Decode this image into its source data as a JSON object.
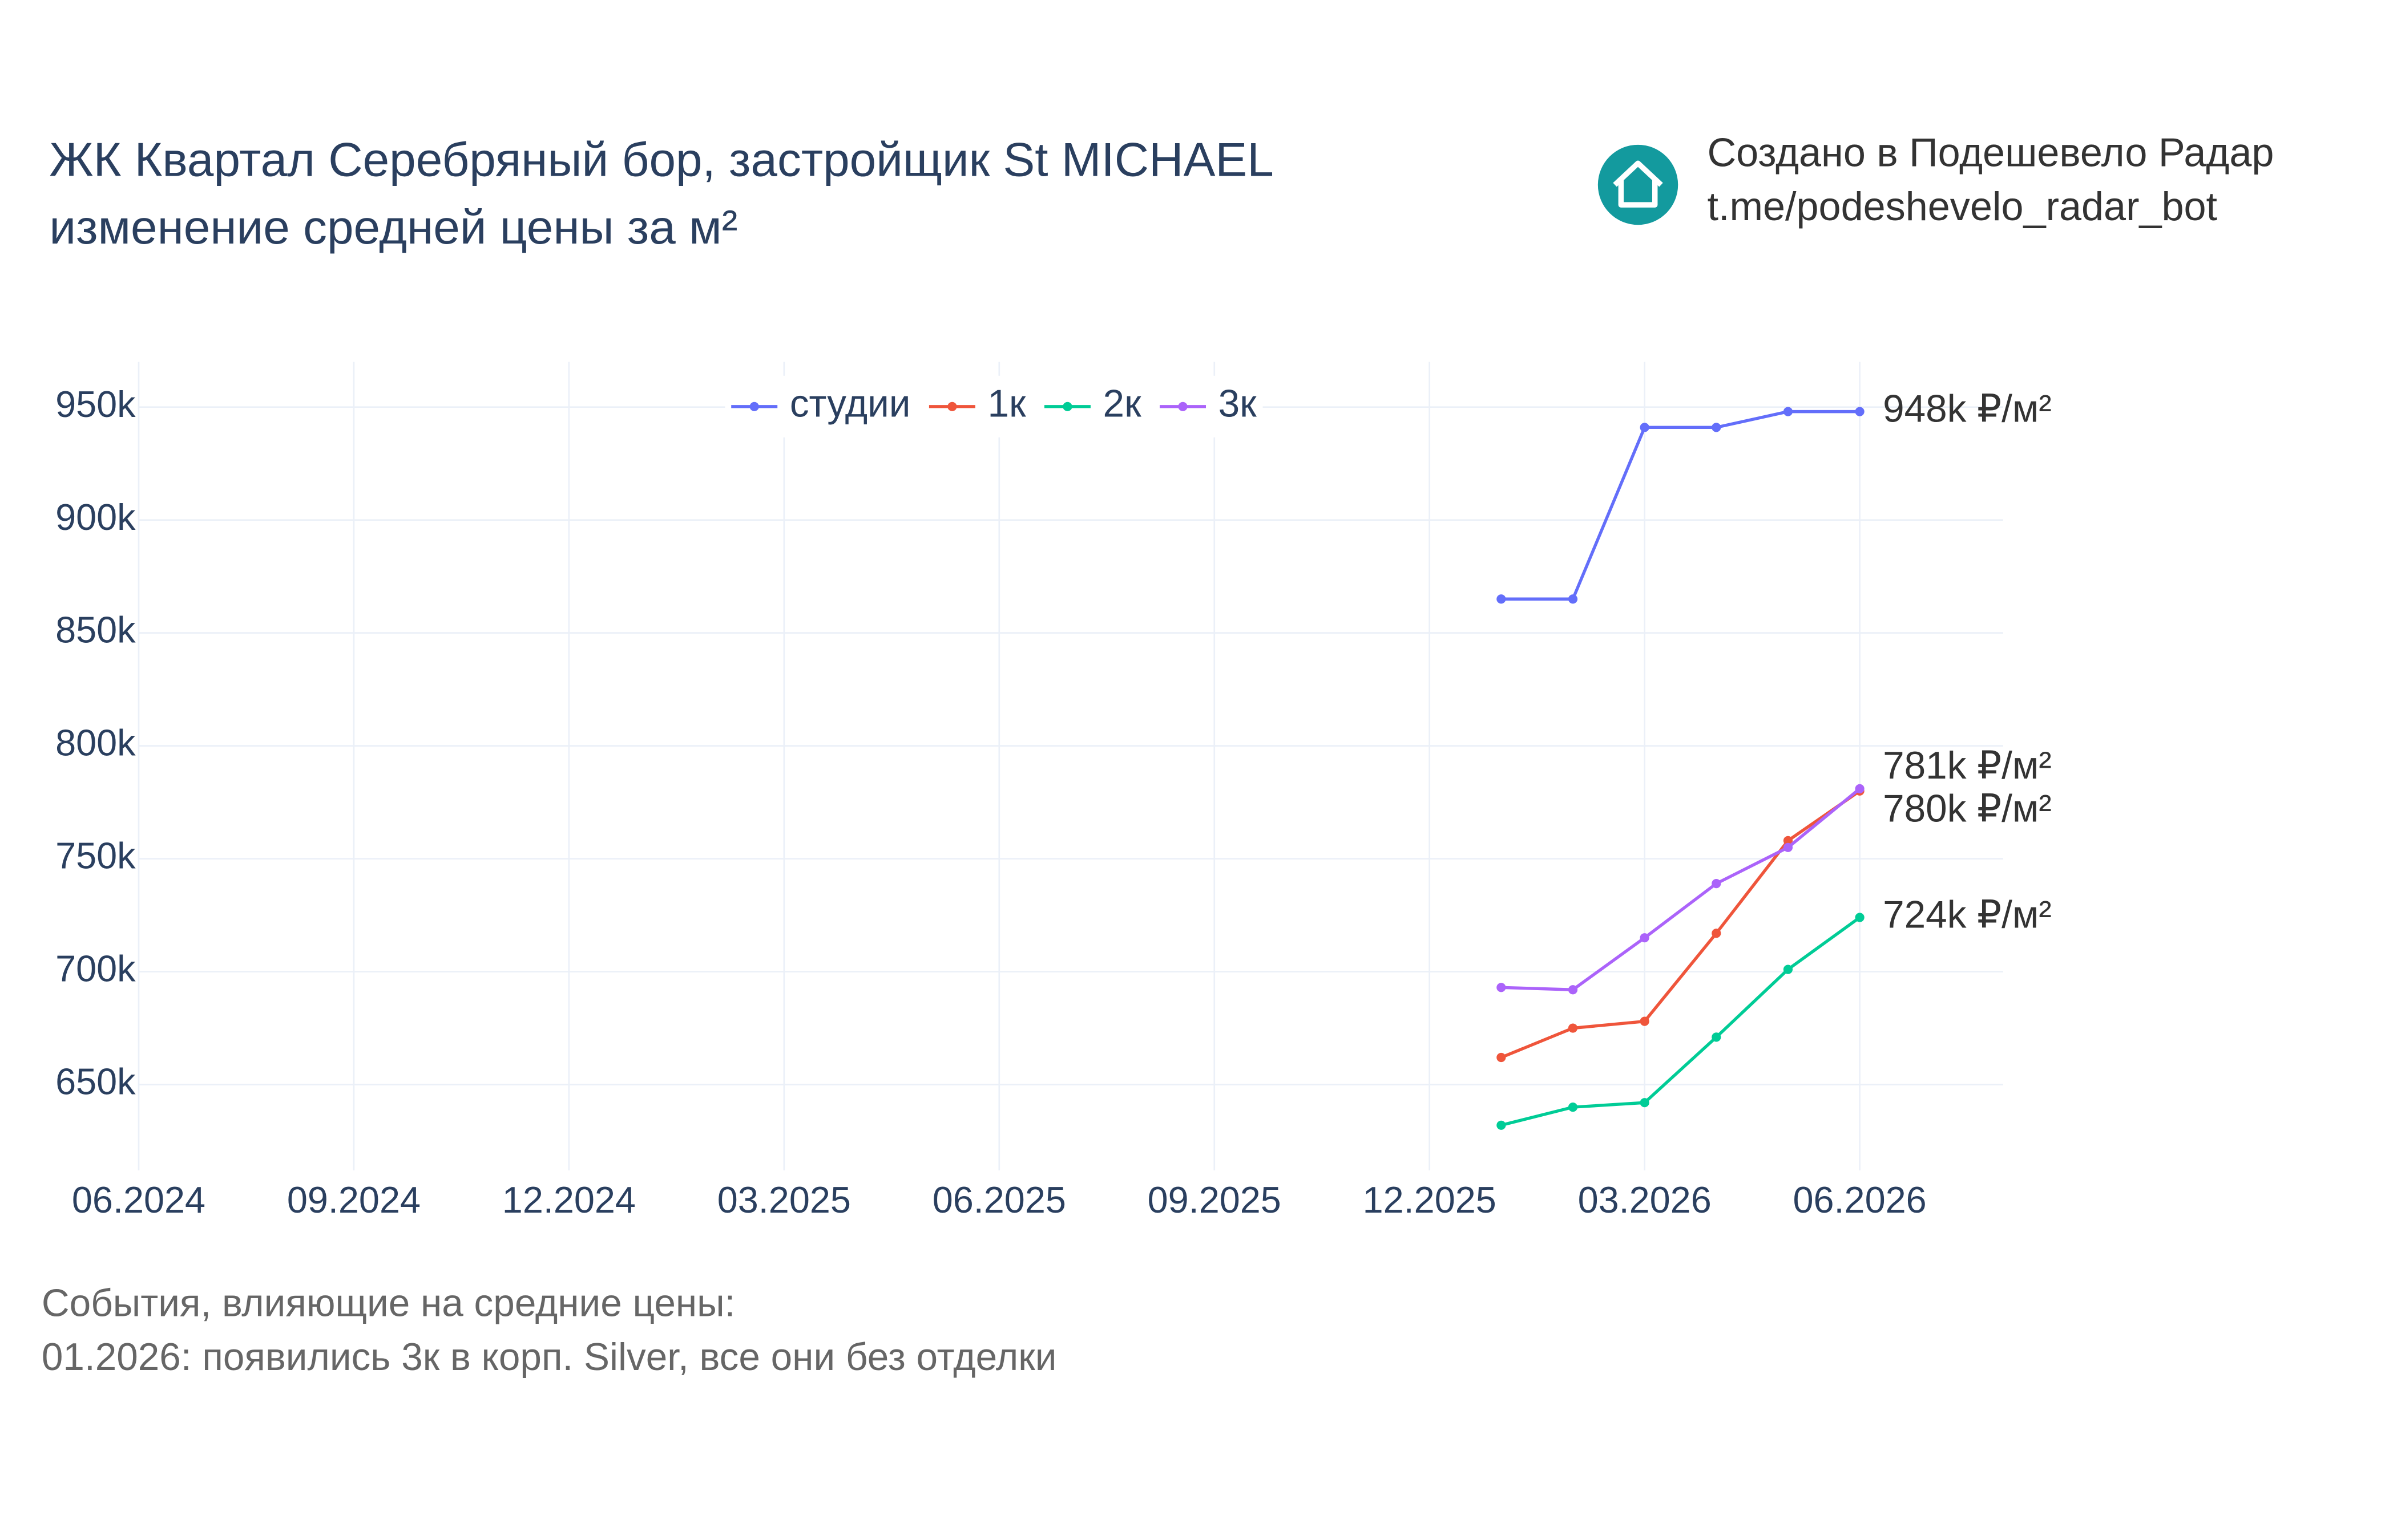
{
  "chart_data": {
    "type": "line",
    "title": "ЖК Квартал Серебряный бор, застройщик St MICHAEL",
    "subtitle": "изменение средней цены за м²",
    "credit": [
      "Создано в Подешевело Радар",
      "t.me/podeshevelo_radar_bot"
    ],
    "notes": [
      "События, влияющие на средние цены:",
      "01.2026: появились 3к в корп. Silver, все они без отделки"
    ],
    "x": [
      "01.2026",
      "02.2026",
      "03.2026",
      "04.2026",
      "05.2026",
      "06.2026"
    ],
    "series": [
      {
        "name": "студии",
        "color": "#636efa",
        "values": [
          865000,
          865000,
          941000,
          941000,
          948000,
          948000
        ],
        "value_labels": [
          null,
          null,
          null,
          null,
          null,
          "948k ₽/м²"
        ]
      },
      {
        "name": "1к",
        "color": "#ef553b",
        "values": [
          662000,
          675000,
          678000,
          717000,
          758000,
          780000
        ],
        "value_labels": [
          null,
          null,
          null,
          null,
          null,
          "780k ₽/м²"
        ]
      },
      {
        "name": "2к",
        "color": "#00cc96",
        "values": [
          632000,
          640000,
          642000,
          671000,
          701000,
          724000
        ],
        "value_labels": [
          null,
          null,
          null,
          null,
          null,
          "724k ₽/м²"
        ]
      },
      {
        "name": "3к",
        "color": "#ab63fa",
        "values": [
          693000,
          692000,
          715000,
          739000,
          755000,
          781000
        ],
        "value_labels": [
          null,
          null,
          null,
          null,
          null,
          "781k ₽/м²"
        ]
      }
    ],
    "xlim": [
      "06.2024",
      "08.2026"
    ],
    "xticks": [
      "06.2024",
      "09.2024",
      "12.2024",
      "03.2025",
      "06.2025",
      "09.2025",
      "12.2025",
      "03.2026",
      "06.2026"
    ],
    "ylim": [
      612000,
      970000
    ],
    "yticks": [
      {
        "value": 650000,
        "label": "650k"
      },
      {
        "value": 700000,
        "label": "700k"
      },
      {
        "value": 750000,
        "label": "750k"
      },
      {
        "value": 800000,
        "label": "800k"
      },
      {
        "value": 850000,
        "label": "850k"
      },
      {
        "value": 900000,
        "label": "900k"
      },
      {
        "value": 950000,
        "label": "950k"
      }
    ],
    "grid": true,
    "legend": "top"
  }
}
